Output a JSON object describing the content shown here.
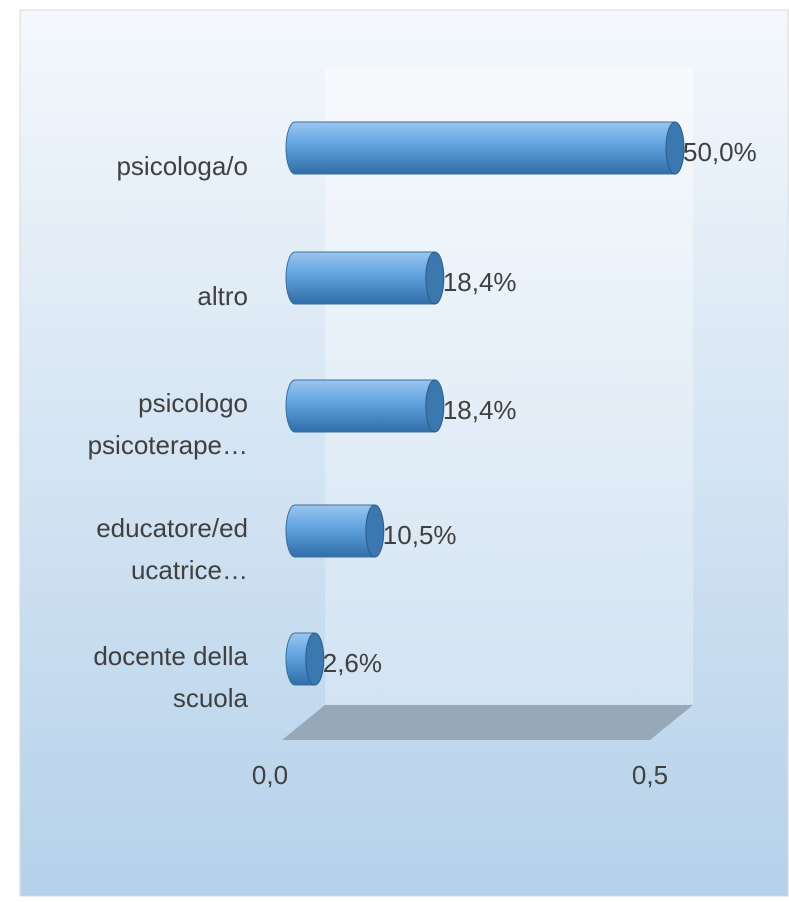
{
  "chart_data": {
    "type": "bar",
    "orientation": "horizontal",
    "categories": [
      [
        "psicologa/o"
      ],
      [
        "altro"
      ],
      [
        "psicologo",
        "psicoterape…"
      ],
      [
        "educatore/ed",
        "ucatrice…"
      ],
      [
        "docente della",
        "scuola"
      ]
    ],
    "values": [
      0.5,
      0.184,
      0.184,
      0.105,
      0.026
    ],
    "value_labels": [
      "50,0%",
      "18,4%",
      "18,4%",
      "10,5%",
      "2,6%"
    ],
    "color": "#5b9bd5",
    "xlim": [
      0,
      0.5
    ],
    "xticks": [
      {
        "value": 0,
        "label": "0,0"
      },
      {
        "value": 0.5,
        "label": "0,5"
      }
    ]
  }
}
